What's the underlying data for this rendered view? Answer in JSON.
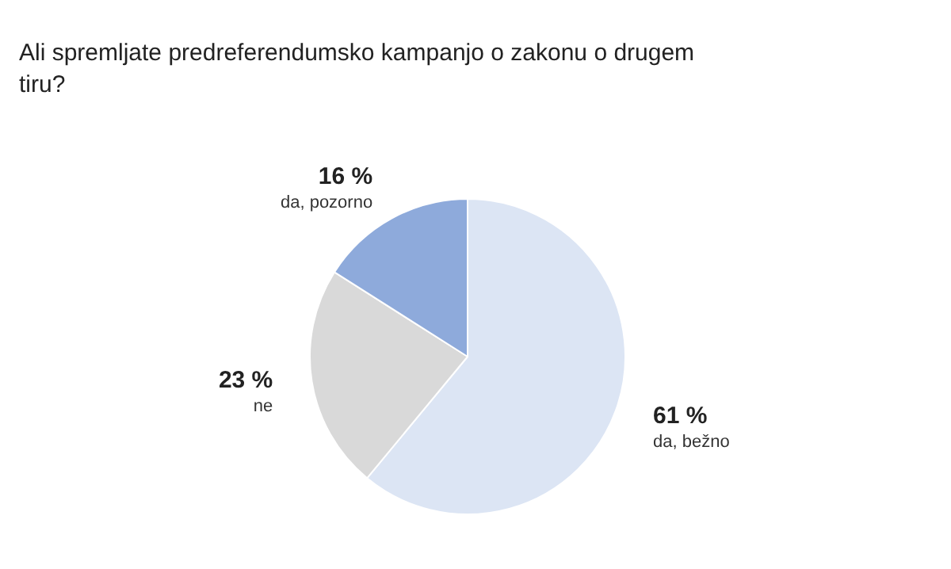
{
  "chart_data": {
    "type": "pie",
    "title": "Ali spremljate predreferendumsko kampanjo o zakonu o drugem tiru?",
    "categories": [
      "da, bežno",
      "ne",
      "da, pozorno"
    ],
    "values": [
      61,
      23,
      16
    ],
    "colors": [
      "#dce5f4",
      "#d9d9d9",
      "#8eaadb"
    ],
    "value_labels": [
      "61 %",
      "23 %",
      "16 %"
    ],
    "legend": false
  }
}
